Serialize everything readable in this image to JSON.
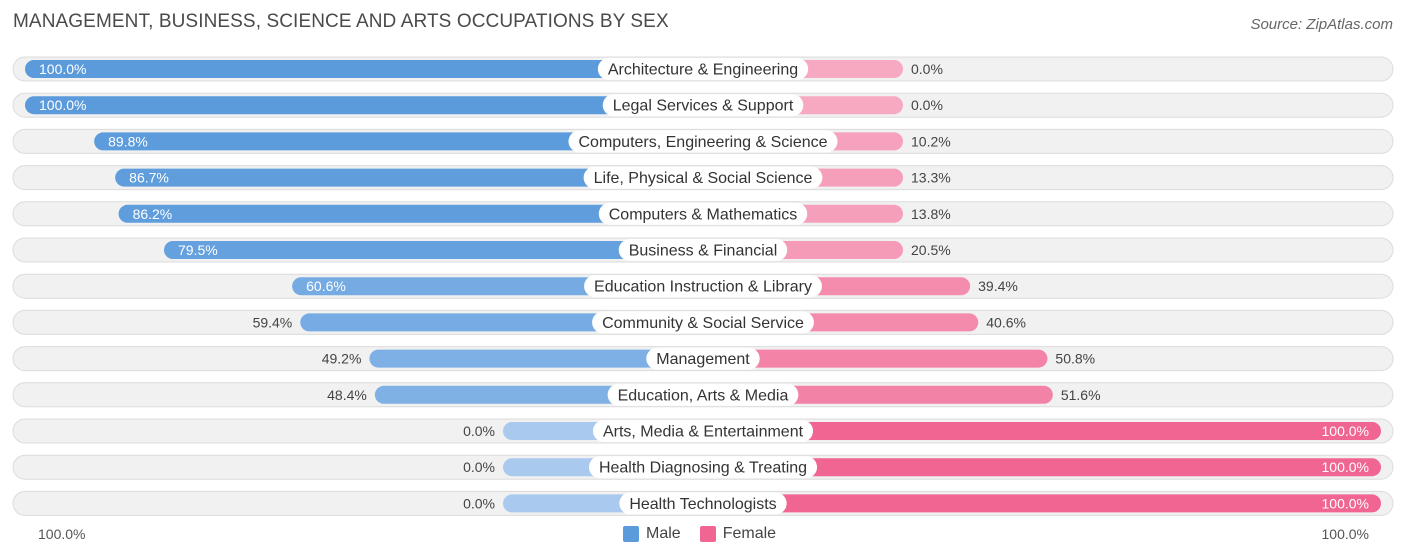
{
  "chart_data": {
    "type": "bar",
    "orientation": "horizontal-diverging",
    "title": "MANAGEMENT, BUSINESS, SCIENCE AND ARTS OCCUPATIONS BY SEX",
    "source": "Source: ZipAtlas.com",
    "categories": [
      "Architecture & Engineering",
      "Legal Services & Support",
      "Computers, Engineering & Science",
      "Life, Physical & Social Science",
      "Computers & Mathematics",
      "Business & Financial",
      "Education Instruction & Library",
      "Community & Social Service",
      "Management",
      "Education, Arts & Media",
      "Arts, Media & Entertainment",
      "Health Diagnosing & Treating",
      "Health Technologists"
    ],
    "series": [
      {
        "name": "Male",
        "values": [
          100.0,
          100.0,
          89.8,
          86.7,
          86.2,
          79.5,
          60.6,
          59.4,
          49.2,
          48.4,
          0.0,
          0.0,
          0.0
        ],
        "labels": [
          "100.0%",
          "100.0%",
          "89.8%",
          "86.7%",
          "86.2%",
          "79.5%",
          "60.6%",
          "59.4%",
          "49.2%",
          "48.4%",
          "0.0%",
          "0.0%",
          "0.0%"
        ]
      },
      {
        "name": "Female",
        "values": [
          0.0,
          0.0,
          10.2,
          13.3,
          13.8,
          20.5,
          39.4,
          40.6,
          50.8,
          51.6,
          100.0,
          100.0,
          100.0
        ],
        "labels": [
          "0.0%",
          "0.0%",
          "10.2%",
          "13.3%",
          "13.8%",
          "20.5%",
          "39.4%",
          "40.6%",
          "50.8%",
          "51.6%",
          "100.0%",
          "100.0%",
          "100.0%"
        ]
      }
    ],
    "xlim": [
      0,
      100
    ],
    "axis_left_label": "100.0%",
    "axis_right_label": "100.0%",
    "legend_position": "bottom-center"
  },
  "colors": {
    "male_strong": "#5b9bdc",
    "male_light": "#a9c9ef",
    "female_strong": "#f06592",
    "female_light": "#f7a9c2",
    "row_bg": "#f1f1f1",
    "row_border": "#dcdcdc"
  }
}
